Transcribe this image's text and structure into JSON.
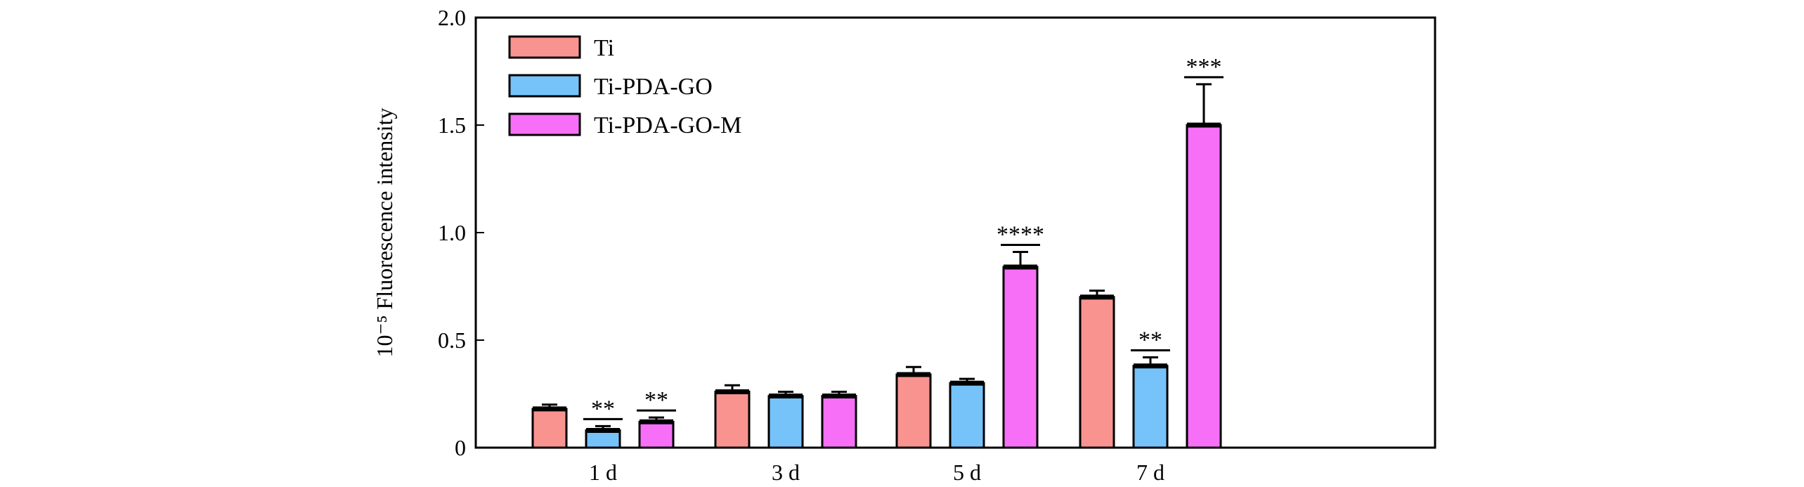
{
  "chart_data": {
    "type": "bar",
    "title": "",
    "xlabel": "",
    "ylabel": "10⁻⁵ Fluorescence intensity",
    "ylim": [
      0,
      2.0
    ],
    "yticks": [
      0,
      0.5,
      1.0,
      1.5,
      2.0
    ],
    "ytick_labels": [
      "0",
      "0.5",
      "1.0",
      "1.5",
      "2.0"
    ],
    "categories": [
      "1 d",
      "3 d",
      "5 d",
      "7 d"
    ],
    "legend_position": "top-left",
    "grid": false,
    "series": [
      {
        "name": "Ti",
        "color": "#f99390",
        "values": [
          0.18,
          0.26,
          0.34,
          0.7
        ],
        "errors": [
          0.02,
          0.03,
          0.035,
          0.03
        ],
        "significance": [
          "",
          "",
          "",
          ""
        ]
      },
      {
        "name": "Ti-PDA-GO",
        "color": "#76c3fa",
        "values": [
          0.08,
          0.24,
          0.3,
          0.38
        ],
        "errors": [
          0.02,
          0.02,
          0.02,
          0.04
        ],
        "significance": [
          "**",
          "",
          "",
          "**"
        ]
      },
      {
        "name": "Ti-PDA-GO-M",
        "color": "#f76ff7",
        "values": [
          0.12,
          0.24,
          0.84,
          1.5
        ],
        "errors": [
          0.02,
          0.02,
          0.07,
          0.19
        ],
        "significance": [
          "**",
          "",
          "****",
          "***"
        ]
      }
    ]
  }
}
